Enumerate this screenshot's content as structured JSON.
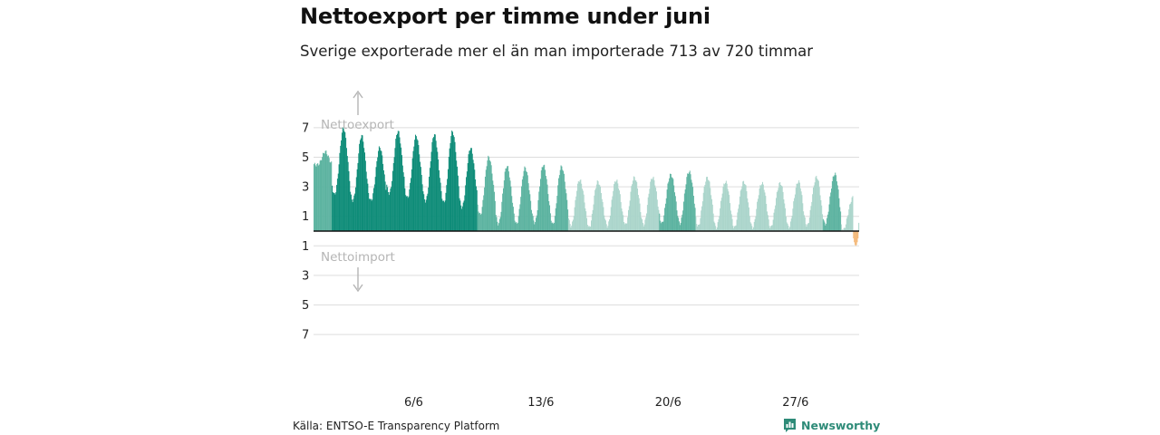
{
  "chart_data": {
    "type": "bar",
    "title": "Nettoexport per timme under juni",
    "subtitle": "Sverige exporterade mer el än man importerade 713 av 720 timmar",
    "xlabel": "",
    "ylabel": "",
    "ylim": [
      -7,
      7
    ],
    "y_ticks": [
      {
        "value": 7,
        "label": "7"
      },
      {
        "value": 5,
        "label": "5"
      },
      {
        "value": 3,
        "label": "3"
      },
      {
        "value": 1,
        "label": "1"
      },
      {
        "value": -1,
        "label": "1"
      },
      {
        "value": -3,
        "label": "3"
      },
      {
        "value": -5,
        "label": "5"
      },
      {
        "value": -7,
        "label": "7"
      }
    ],
    "x_ticks": [
      {
        "day": 6,
        "label": "6/6"
      },
      {
        "day": 13,
        "label": "13/6"
      },
      {
        "day": 20,
        "label": "20/6"
      },
      {
        "day": 27,
        "label": "27/6"
      }
    ],
    "annotations": {
      "export": "Nettoexport",
      "import": "Nettoimport"
    },
    "days": 30,
    "hours_per_day": 24,
    "daily_peak_gw": [
      5.3,
      6.9,
      6.4,
      5.6,
      6.7,
      6.4,
      6.5,
      6.7,
      5.6,
      5.0,
      4.4,
      4.3,
      4.5,
      4.4,
      3.5,
      3.4,
      3.5,
      3.7,
      3.7,
      3.9,
      4.1,
      3.7,
      3.4,
      3.4,
      3.3,
      3.3,
      3.4,
      3.7,
      3.9,
      2.3
    ],
    "daily_trough_gw": [
      4.4,
      2.4,
      2.0,
      2.0,
      2.5,
      2.2,
      2.0,
      1.9,
      1.6,
      1.1,
      0.5,
      0.5,
      0.6,
      0.5,
      0.4,
      0.3,
      0.4,
      0.5,
      0.5,
      0.6,
      0.6,
      0.4,
      0.3,
      0.3,
      0.3,
      0.3,
      0.3,
      0.4,
      0.5,
      0.1
    ],
    "net_import_hours": 7,
    "net_import_min_gw": -1.0,
    "colors": {
      "export_high": "#0e8c78",
      "export_mid": "#5cb3a0",
      "export_low": "#abd5cb",
      "import": "#f4b97a",
      "grid": "#dddddd",
      "zero_line": "#111111"
    }
  },
  "footer": {
    "source": "Källa: ENTSO-E Transparency Platform",
    "brand": "Newsworthy"
  }
}
